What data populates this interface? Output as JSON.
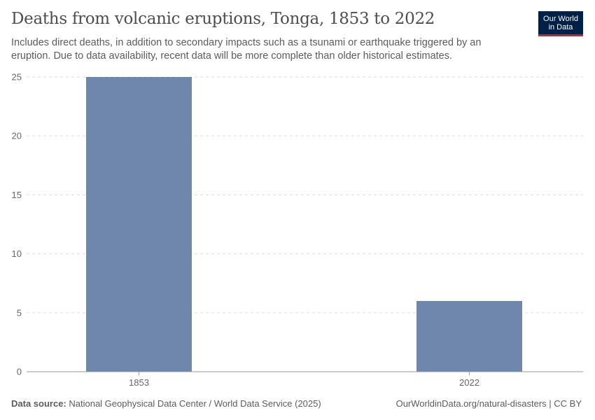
{
  "header": {
    "title": "Deaths from volcanic eruptions, Tonga, 1853 to 2022",
    "subtitle": "Includes direct deaths, in addition to secondary impacts such as a tsunami or earthquake triggered by an eruption. Due to data availability, recent data will be more complete than older historical estimates."
  },
  "logo": {
    "line1": "Our World",
    "line2": "in Data"
  },
  "footer": {
    "source_label": "Data source:",
    "source_text": "National Geophysical Data Center / World Data Service (2025)",
    "link_text": "OurWorldinData.org/natural-disasters | CC BY"
  },
  "colors": {
    "bar": "#6f87ad",
    "grid": "#dddddd",
    "axis": "#999999",
    "tick_text": "#666666",
    "logo_bg": "#002147",
    "logo_accent": "#ce261e"
  },
  "chart_data": {
    "type": "bar",
    "title": "Deaths from volcanic eruptions, Tonga, 1853 to 2022",
    "xlabel": "",
    "ylabel": "",
    "categories": [
      "1853",
      "2022"
    ],
    "values": [
      25,
      6
    ],
    "ylim": [
      0,
      25
    ],
    "yticks": [
      0,
      5,
      10,
      15,
      20,
      25
    ],
    "ytick_labels": [
      "0",
      "5",
      "10",
      "15",
      "20",
      "25"
    ],
    "grid": true,
    "legend": "none"
  }
}
